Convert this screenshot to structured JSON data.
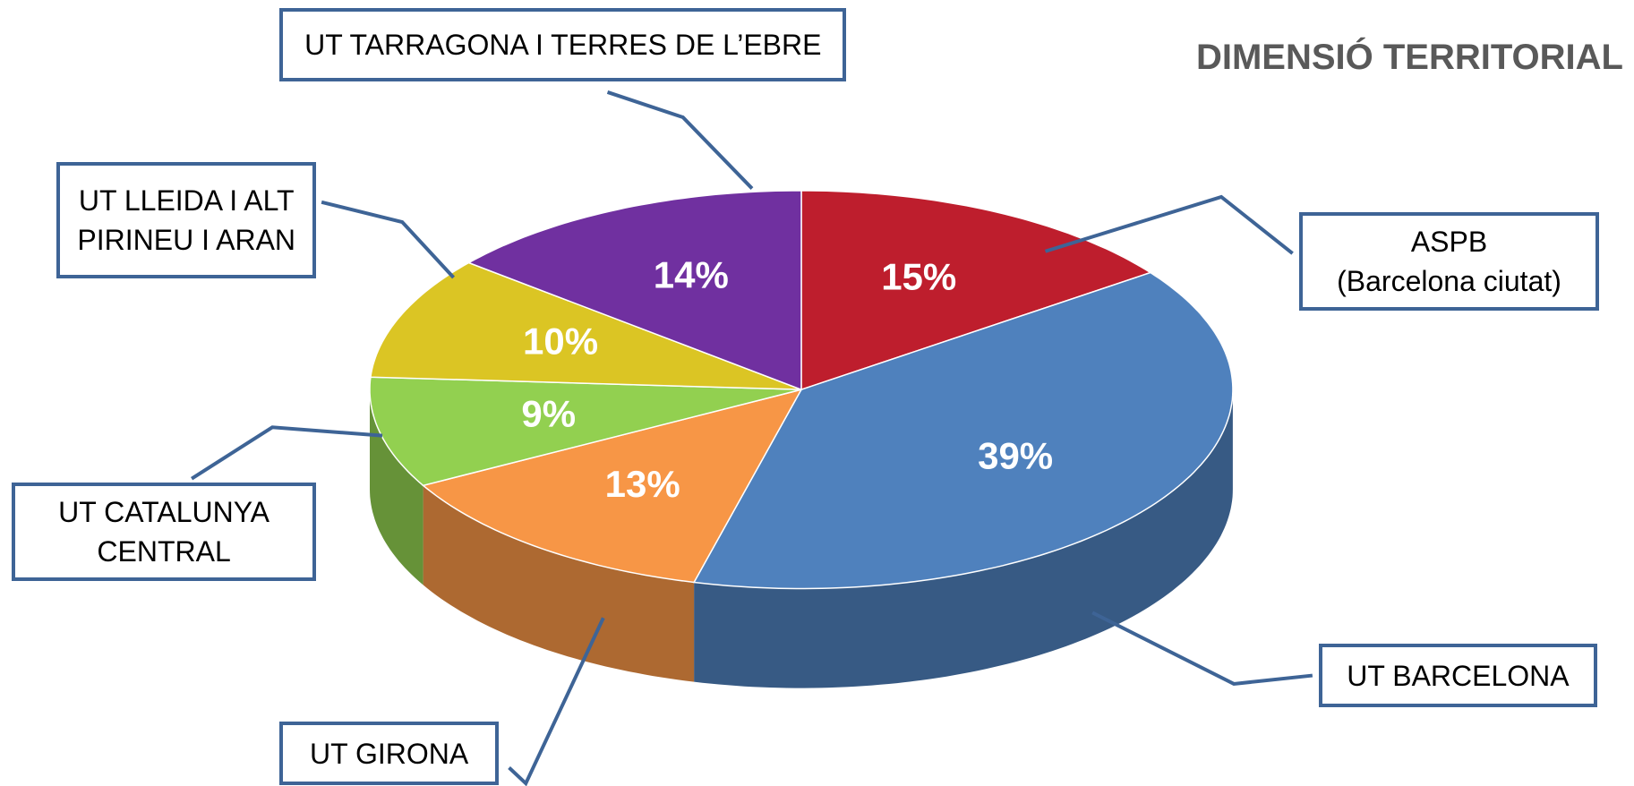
{
  "chart_data": {
    "type": "pie3d",
    "title": "DIMENSIÓ TERRITORIAL",
    "categories": [
      "ASPB\n(Barcelona ciutat)",
      "UT BARCELONA",
      "UT GIRONA",
      "UT CATALUNYA\nCENTRAL",
      "UT LLEIDA I ALT\nPIRINEU I ARAN",
      "UT TARRAGONA I TERRES DE L’EBRE"
    ],
    "values": [
      15,
      39,
      13,
      9,
      10,
      14
    ],
    "value_labels": [
      "15%",
      "39%",
      "13%",
      "9%",
      "10%",
      "14%"
    ],
    "colors": [
      "#be1e2d",
      "#4f81bd",
      "#f79646",
      "#92d050",
      "#dbc524",
      "#7030a0"
    ]
  }
}
